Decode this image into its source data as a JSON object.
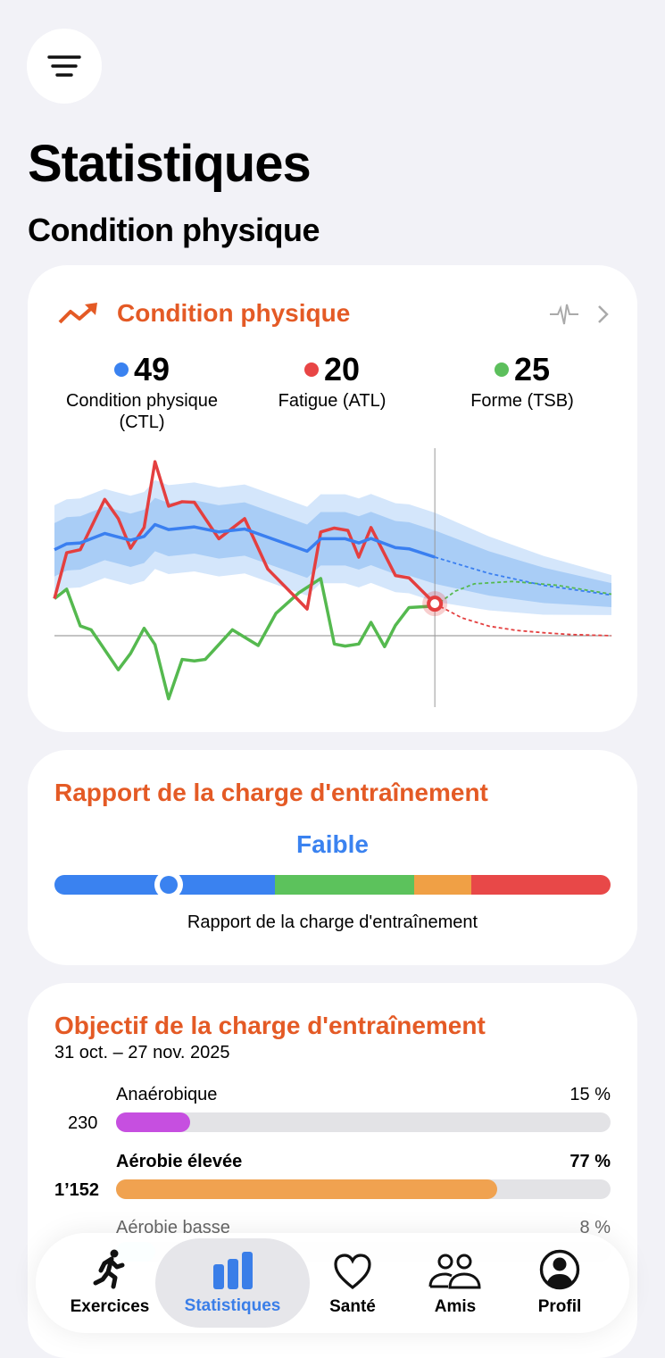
{
  "header": {
    "title": "Statistiques",
    "subtitle": "Condition physique"
  },
  "fitness_card": {
    "title": "Condition physique",
    "metrics": [
      {
        "value": "49",
        "label": "Condition physique (CTL)",
        "color": "#3a82f0"
      },
      {
        "value": "20",
        "label": "Fatigue (ATL)",
        "color": "#e84545"
      },
      {
        "value": "25",
        "label": "Forme (TSB)",
        "color": "#5cbf5c"
      }
    ]
  },
  "chart_data": {
    "type": "line",
    "x_unit": "days",
    "today": 28,
    "x_range": [
      0,
      41
    ],
    "y_range": [
      -24,
      62
    ],
    "series": [
      {
        "name": "Condition physique (CTL)",
        "color": "#3a7ff0",
        "x": [
          0,
          0.9,
          1.9,
          3.7,
          5.6,
          6.6,
          7.4,
          8.4,
          10.3,
          12.1,
          14,
          18.6,
          19.6,
          21.4,
          22.4,
          23.3,
          25.1,
          26.1,
          28
        ],
        "y": [
          29,
          31,
          31.3,
          34.5,
          32.2,
          33.5,
          37.5,
          35.8,
          36.7,
          35,
          36,
          28.5,
          32.7,
          32.7,
          31.3,
          32.8,
          29.7,
          29.3,
          26.5
        ],
        "forecast_x": [
          28,
          32,
          36,
          41
        ],
        "forecast_y": [
          26.5,
          21,
          17,
          13.7
        ]
      },
      {
        "name": "Fatigue (ATL)",
        "color": "#e43f3f",
        "x": [
          0,
          0.9,
          1.9,
          3.7,
          4.7,
          5.6,
          6.6,
          7.4,
          8.4,
          9.4,
          10.3,
          12.1,
          14,
          15.7,
          18.6,
          19.6,
          20.6,
          21.6,
          22.4,
          23.3,
          25.1,
          26.1,
          28
        ],
        "y": [
          12.5,
          28,
          29,
          46,
          39.5,
          29.5,
          36.5,
          58.7,
          43.7,
          45.2,
          45,
          32.7,
          39.5,
          22.5,
          9,
          35,
          36.3,
          35.5,
          26.5,
          36.5,
          20.3,
          19.5,
          10.8
        ],
        "forecast_x": [
          28,
          30,
          32,
          34,
          36,
          38,
          41
        ],
        "forecast_y": [
          10.8,
          6,
          3.2,
          1.8,
          1,
          0.4,
          0
        ]
      },
      {
        "name": "Forme (TSB)",
        "color": "#55b94f",
        "x": [
          0,
          0.9,
          1.9,
          2.7,
          4.7,
          5.6,
          6.6,
          7.4,
          8.4,
          9.4,
          10.3,
          11.1,
          13.1,
          15,
          16.3,
          18,
          19.6,
          20.6,
          21.4,
          22.4,
          23.3,
          24.3,
          25.1,
          26.1,
          28
        ],
        "y": [
          12.5,
          15.7,
          3.3,
          2,
          -11.5,
          -6,
          2.5,
          -3,
          -21.3,
          -8,
          -8.5,
          -8,
          2,
          -3.3,
          7.5,
          14.5,
          19.3,
          -2.8,
          -3.5,
          -2.8,
          4.5,
          -3.7,
          3.5,
          9.5,
          10
        ],
        "forecast_x": [
          28,
          29.5,
          30.9,
          33.7,
          37,
          41
        ],
        "forecast_y": [
          10,
          15,
          17.5,
          18.3,
          17,
          14
        ]
      }
    ],
    "ctl_bands": {
      "inner": 9,
      "outer": 15
    }
  },
  "ratio_card": {
    "title": "Rapport de la charge d'entraînement",
    "status": "Faible",
    "caption": "Rapport de la charge d'entraînement",
    "position": 0.205,
    "segments": [
      {
        "fraction": 0.397,
        "color": "#3a82f0"
      },
      {
        "fraction": 0.25,
        "color": "#5cc25c"
      },
      {
        "fraction": 0.103,
        "color": "#f0a045"
      },
      {
        "fraction": 0.25,
        "color": "#e84848"
      }
    ]
  },
  "goal_card": {
    "title": "Objectif de la charge d'entraînement",
    "period": "31 oct. – 27 nov. 2025",
    "rows": [
      {
        "label": "Anaérobique",
        "value": "230",
        "percent": "15 %",
        "fraction": 0.15,
        "color": "#c64fe0"
      },
      {
        "label": "Aérobie élevée",
        "value": "1’152",
        "percent": "77 %",
        "fraction": 0.77,
        "color": "#f0a250"
      },
      {
        "label": "Aérobie basse",
        "percent": "8 %",
        "fraction": 0.08,
        "color": "#8ceff0"
      }
    ]
  },
  "tabbar": {
    "tabs": [
      {
        "label": "Exercices"
      },
      {
        "label": "Statistiques"
      },
      {
        "label": "Santé"
      },
      {
        "label": "Amis"
      },
      {
        "label": "Profil"
      }
    ]
  }
}
